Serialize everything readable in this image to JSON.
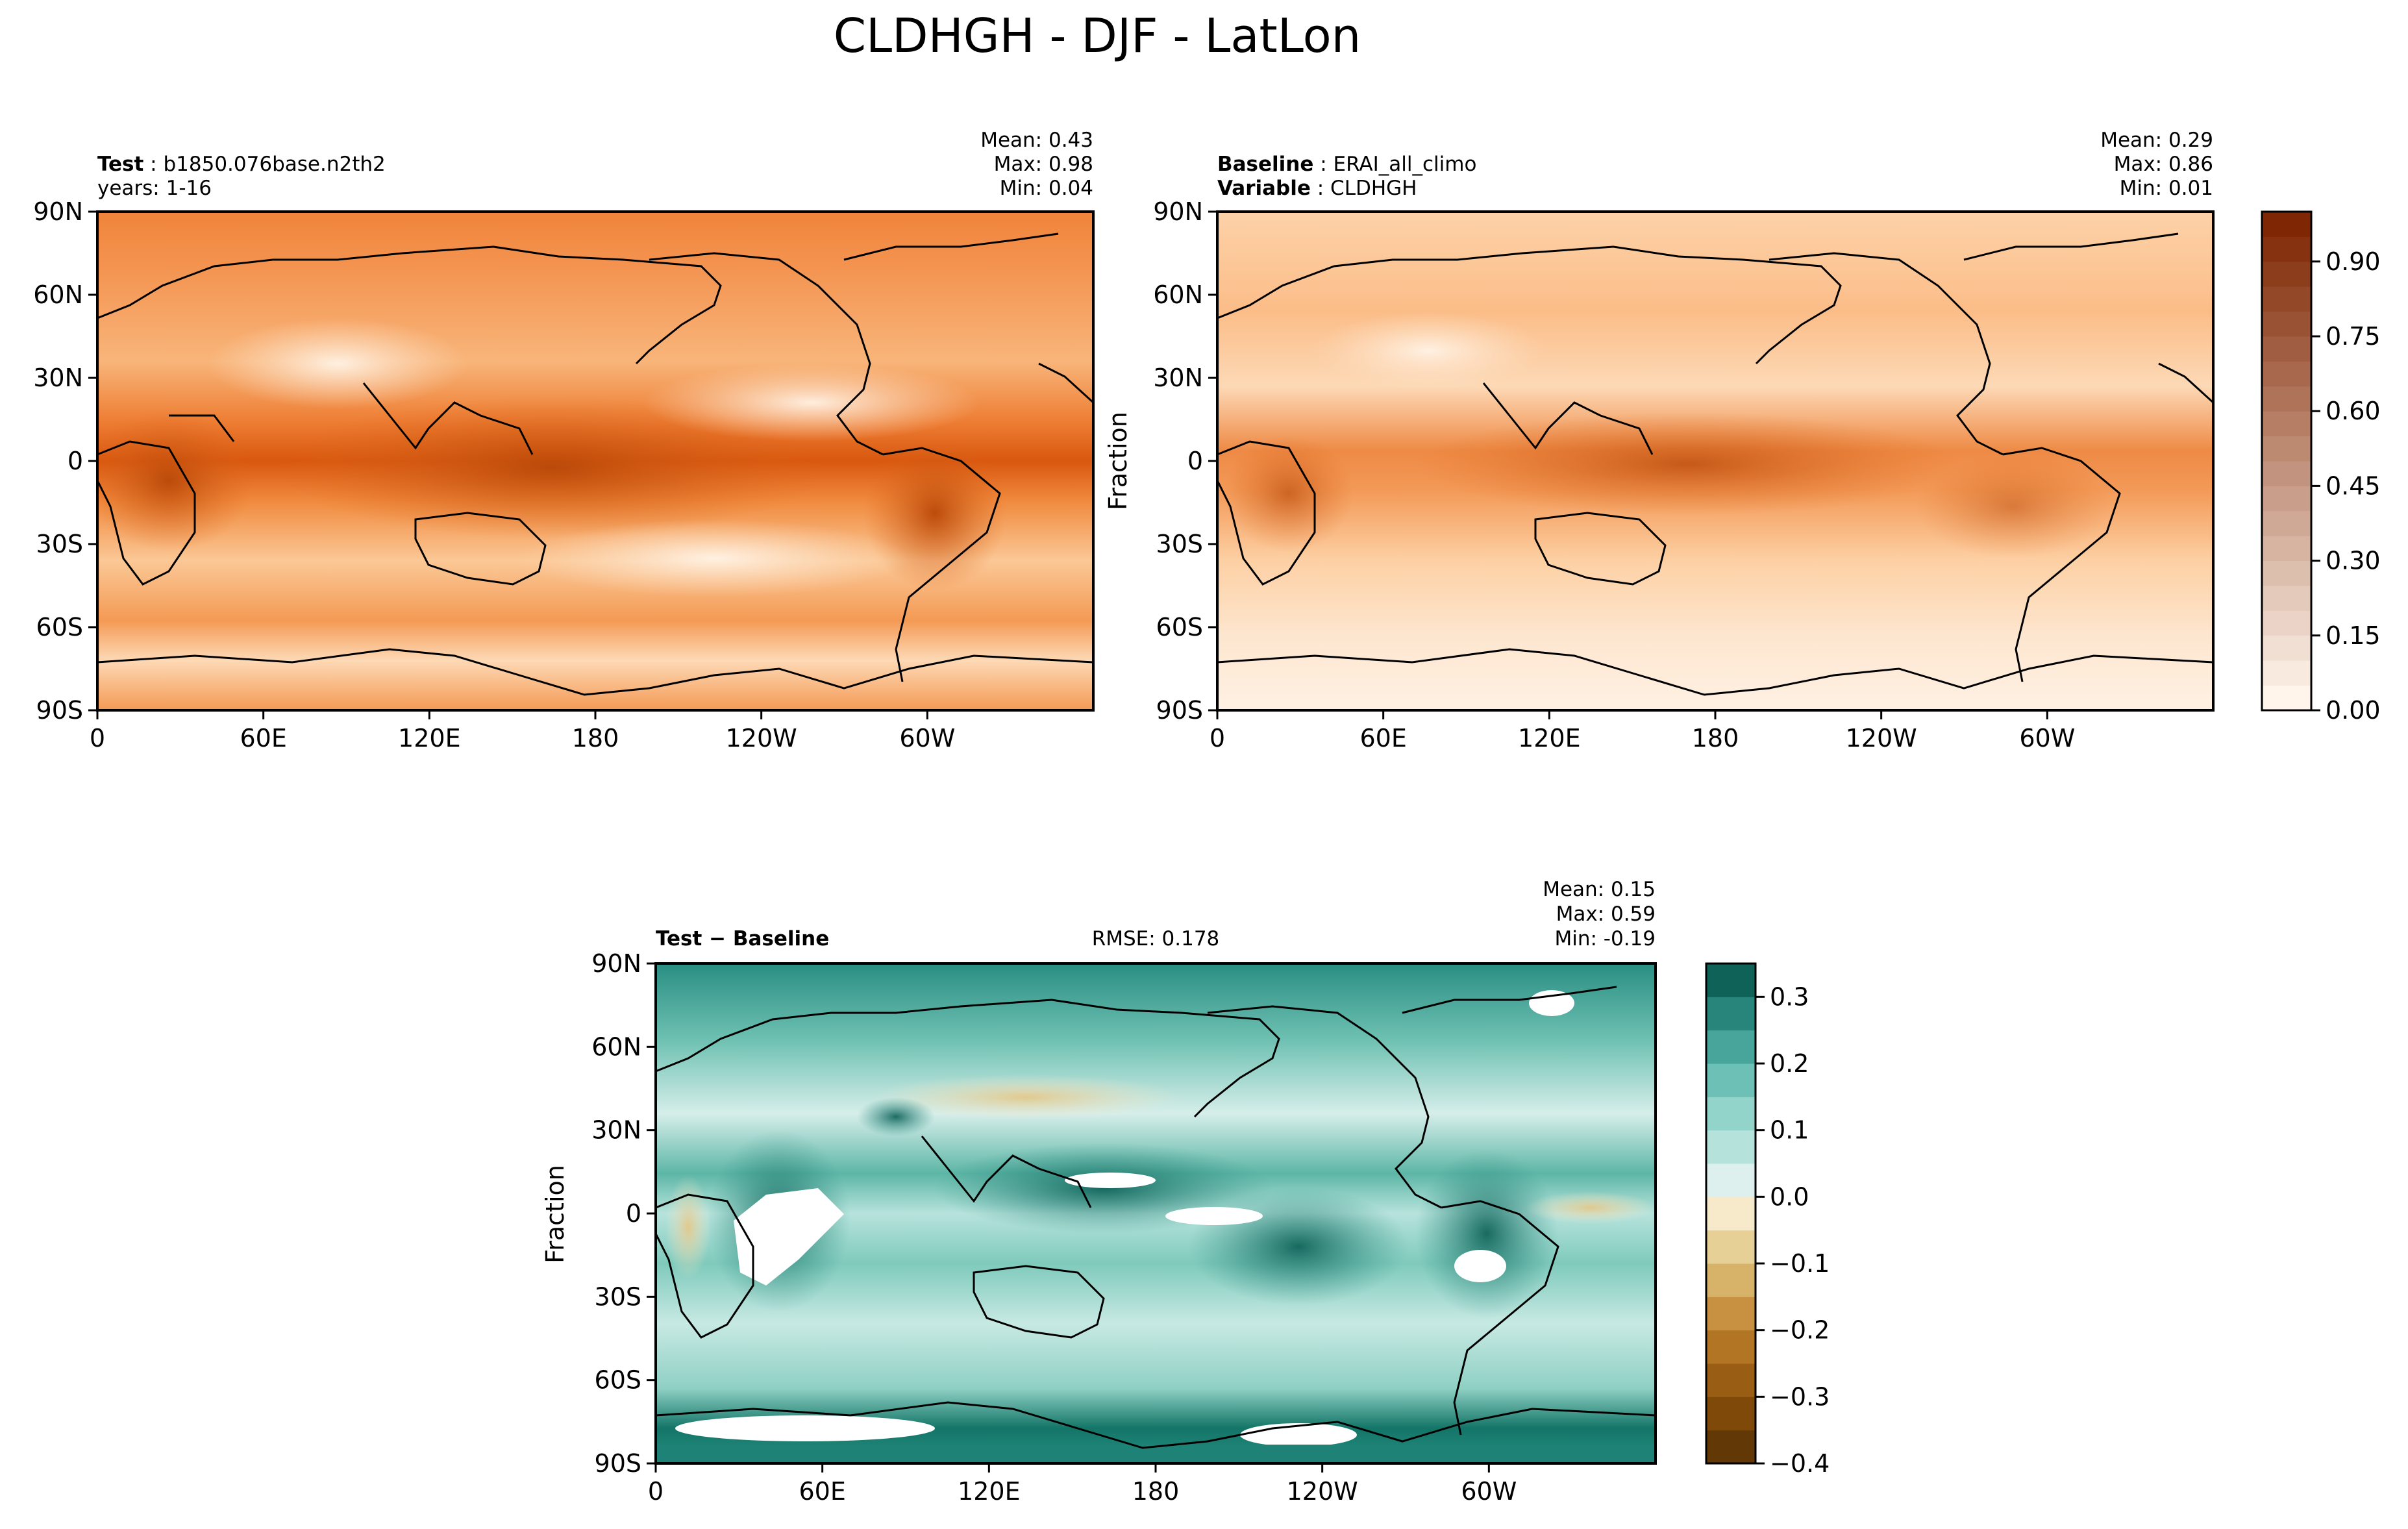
{
  "figure": {
    "suptitle": "CLDHGH - DJF - LatLon"
  },
  "axes": {
    "lon_ticks": [
      "0",
      "60E",
      "120E",
      "180",
      "120W",
      "60W"
    ],
    "lat_ticks": [
      "90N",
      "60N",
      "30N",
      "0",
      "30S",
      "60S",
      "90S"
    ],
    "ylabel": "Fraction"
  },
  "panels": {
    "test": {
      "label_bold": "Test",
      "label_value": "b1850.076base.n2th2",
      "line2": "years: 1-16",
      "mean": "Mean:  0.43",
      "max": "Max:  0.98",
      "min": "Min:  0.04"
    },
    "baseline": {
      "label_bold": "Baseline",
      "label_value": "ERAI_all_climo",
      "line2_bold": "Variable",
      "line2_value": "CLDHGH",
      "mean": "Mean:  0.29",
      "max": "Max:  0.86",
      "min": "Min:  0.01"
    },
    "diff": {
      "label": "Test − Baseline",
      "rmse": "RMSE: 0.178",
      "mean": "Mean:  0.15",
      "max": "Max:  0.59",
      "min": "Min: -0.19"
    }
  },
  "colorbars": {
    "main": {
      "ticks": [
        "0.00",
        "0.15",
        "0.30",
        "0.45",
        "0.60",
        "0.75",
        "0.90"
      ],
      "range": [
        0,
        1
      ],
      "cmap": "Oranges"
    },
    "diff": {
      "ticks": [
        "−0.4",
        "−0.3",
        "−0.2",
        "−0.1",
        "0.0",
        "0.1",
        "0.2",
        "0.3"
      ],
      "range": [
        -0.4,
        0.35
      ],
      "cmap": "BrBG"
    }
  },
  "chart_data": [
    {
      "type": "heatmap",
      "panel": "test",
      "variable": "CLDHGH",
      "season": "DJF",
      "units": "Fraction",
      "stats": {
        "mean": 0.43,
        "max": 0.98,
        "min": 0.04
      },
      "xlim": [
        0,
        360
      ],
      "ylim": [
        -90,
        90
      ],
      "grid": false
    },
    {
      "type": "heatmap",
      "panel": "baseline",
      "variable": "CLDHGH",
      "season": "DJF",
      "units": "Fraction",
      "stats": {
        "mean": 0.29,
        "max": 0.86,
        "min": 0.01
      },
      "xlim": [
        0,
        360
      ],
      "ylim": [
        -90,
        90
      ],
      "grid": false
    },
    {
      "type": "heatmap",
      "panel": "diff",
      "variable": "CLDHGH",
      "season": "DJF",
      "units": "Fraction",
      "stats": {
        "mean": 0.15,
        "max": 0.59,
        "min": -0.19,
        "rmse": 0.178
      },
      "xlim": [
        0,
        360
      ],
      "ylim": [
        -90,
        90
      ],
      "grid": false
    }
  ]
}
